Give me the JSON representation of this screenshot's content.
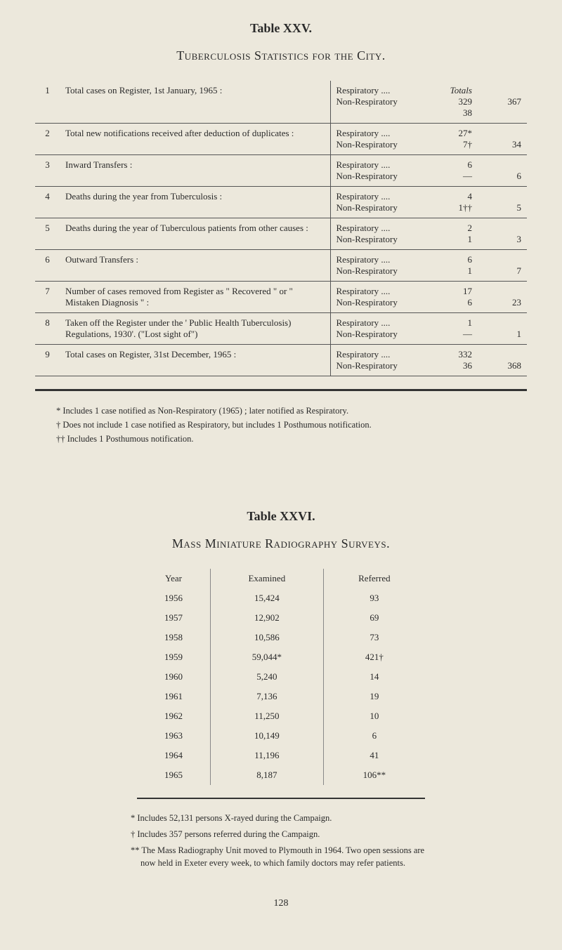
{
  "table25": {
    "label": "Table XXV.",
    "title": "Tuberculosis Statistics for the City.",
    "totals_header": "Totals",
    "rows": [
      {
        "num": "1",
        "desc": "Total cases on Register, 1st January, 1965 :",
        "r1": "Respiratory   ....",
        "r2": "Non-Respiratory",
        "v1": "329",
        "v2": "38",
        "tot": "367"
      },
      {
        "num": "2",
        "desc": "Total new notifications received after deduction of duplicates :",
        "r1": "Respiratory   ....",
        "r2": "Non-Respiratory",
        "v1": "27*",
        "v2": "7†",
        "tot": "34"
      },
      {
        "num": "3",
        "desc": "Inward Transfers :",
        "r1": "Respiratory   ....",
        "r2": "Non-Respiratory",
        "v1": "6",
        "v2": "—",
        "tot": "6"
      },
      {
        "num": "4",
        "desc": "Deaths during the year from Tuberculosis :",
        "r1": "Respiratory   ....",
        "r2": "Non-Respiratory",
        "v1": "4",
        "v2": "1††",
        "tot": "5"
      },
      {
        "num": "5",
        "desc": "Deaths during the year of Tuberculous patients from other causes :",
        "r1": "Respiratory   ....",
        "r2": "Non-Respiratory",
        "v1": "2",
        "v2": "1",
        "tot": "3"
      },
      {
        "num": "6",
        "desc": "Outward Transfers :",
        "r1": "Respiratory   ....",
        "r2": "Non-Respiratory",
        "v1": "6",
        "v2": "1",
        "tot": "7"
      },
      {
        "num": "7",
        "desc": "Number of cases removed from Register as \" Recovered \"  or  \" Mistaken  Diagnosis \" :",
        "r1": "Respiratory   ....",
        "r2": "Non-Respiratory",
        "v1": "17",
        "v2": "6",
        "tot": "23"
      },
      {
        "num": "8",
        "desc": "Taken off the Register under the ' Public Health Tuberculosis) Regulations, 1930'. (\"Lost sight of\")",
        "r1": "Respiratory   ....",
        "r2": "Non-Respiratory",
        "v1": "1",
        "v2": "—",
        "tot": "1"
      },
      {
        "num": "9",
        "desc": "Total cases on Register, 31st December, 1965 :",
        "r1": "Respiratory   ....",
        "r2": "Non-Respiratory",
        "v1": "332",
        "v2": "36",
        "tot": "368"
      }
    ],
    "footnotes": {
      "f1": "* Includes 1 case notified as Non-Respiratory (1965) ; later notified as Respiratory.",
      "f2": "† Does not include 1 case notified as Respiratory, but includes 1 Posthumous notification.",
      "f3": "†† Includes 1 Posthumous notification."
    }
  },
  "table26": {
    "label": "Table XXVI.",
    "title": "Mass Miniature Radiography Surveys.",
    "headers": {
      "year": "Year",
      "examined": "Examined",
      "referred": "Referred"
    },
    "rows": [
      {
        "year": "1956",
        "examined": "15,424",
        "referred": "93"
      },
      {
        "year": "1957",
        "examined": "12,902",
        "referred": "69"
      },
      {
        "year": "1958",
        "examined": "10,586",
        "referred": "73"
      },
      {
        "year": "1959",
        "examined": "59,044*",
        "referred": "421†"
      },
      {
        "year": "1960",
        "examined": "5,240",
        "referred": "14"
      },
      {
        "year": "1961",
        "examined": "7,136",
        "referred": "19"
      },
      {
        "year": "1962",
        "examined": "11,250",
        "referred": "10"
      },
      {
        "year": "1963",
        "examined": "10,149",
        "referred": "6"
      },
      {
        "year": "1964",
        "examined": "11,196",
        "referred": "41"
      },
      {
        "year": "1965",
        "examined": "8,187",
        "referred": "106**"
      }
    ],
    "footnotes": {
      "f1": "* Includes 52,131 persons X-rayed during the Campaign.",
      "f2": "† Includes 357 persons referred during the Campaign.",
      "f3": "** The Mass Radiography Unit moved to Plymouth in 1964.  Two open sessions are now held in Exeter every week, to which family doctors may refer patients."
    }
  },
  "page_number": "128"
}
